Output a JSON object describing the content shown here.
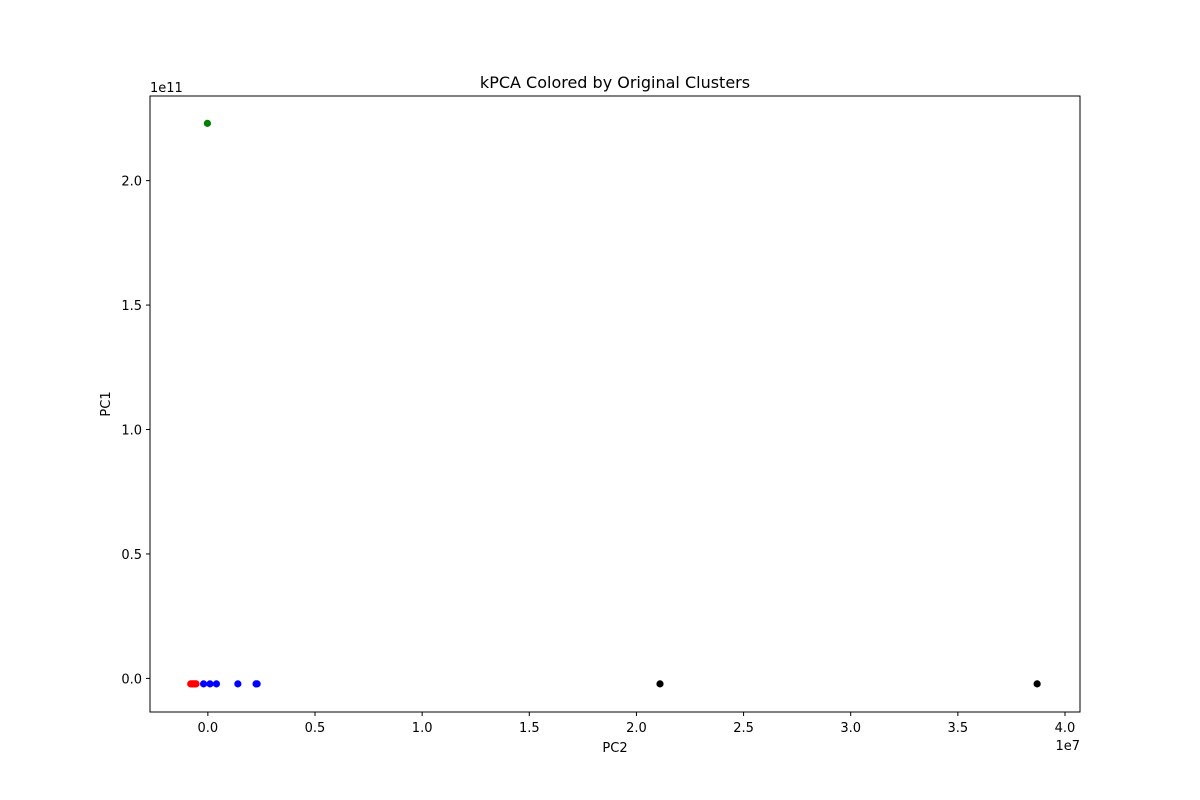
{
  "chart_data": {
    "type": "scatter",
    "title": "kPCA Colored by Original Clusters",
    "xlabel": "PC2",
    "ylabel": "PC1",
    "x_offset_text": "1e7",
    "y_offset_text": "1e11",
    "x_scale": 10000000,
    "y_scale": 100000000000,
    "xlim": [
      -0.27,
      4.07
    ],
    "ylim": [
      -0.135,
      2.34
    ],
    "x_ticks": [
      0.0,
      0.5,
      1.0,
      1.5,
      2.0,
      2.5,
      3.0,
      3.5,
      4.0
    ],
    "x_tick_labels": [
      "0.0",
      "0.5",
      "1.0",
      "1.5",
      "2.0",
      "2.5",
      "3.0",
      "3.5",
      "4.0"
    ],
    "y_ticks": [
      0.0,
      0.5,
      1.0,
      1.5,
      2.0
    ],
    "y_tick_labels": [
      "0.0",
      "0.5",
      "1.0",
      "1.5",
      "2.0"
    ],
    "grid": false,
    "legend": "none",
    "series": [
      {
        "color": "#008000",
        "points": [
          [
            -0.002,
            2.23
          ]
        ]
      },
      {
        "color": "#0000ff",
        "points": [
          [
            -0.02,
            -0.022
          ],
          [
            0.01,
            -0.022
          ],
          [
            0.04,
            -0.022
          ],
          [
            0.14,
            -0.022
          ],
          [
            0.225,
            -0.022
          ],
          [
            0.23,
            -0.022
          ]
        ]
      },
      {
        "color": "#ff0000",
        "points": [
          [
            -0.08,
            -0.022
          ],
          [
            -0.075,
            -0.022
          ],
          [
            -0.07,
            -0.022
          ],
          [
            -0.065,
            -0.022
          ],
          [
            -0.06,
            -0.022
          ],
          [
            -0.055,
            -0.022
          ]
        ]
      },
      {
        "color": "#000000",
        "points": [
          [
            2.11,
            -0.022
          ],
          [
            3.87,
            -0.022
          ]
        ]
      }
    ]
  }
}
